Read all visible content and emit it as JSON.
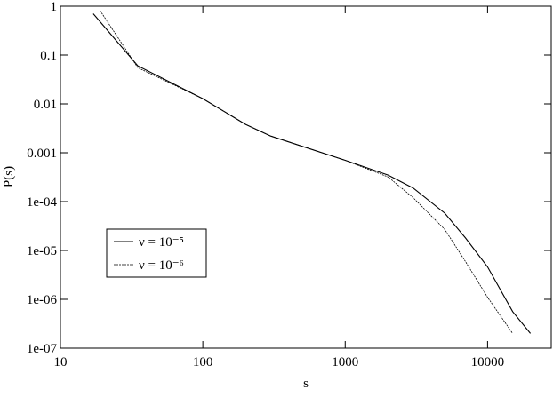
{
  "chart_data": {
    "type": "line",
    "xlabel": "s",
    "ylabel": "P(s)",
    "xscale": "log",
    "yscale": "log",
    "xlim": [
      10,
      28000
    ],
    "ylim": [
      1e-07,
      1
    ],
    "xticks": [
      10,
      100,
      1000,
      10000
    ],
    "yticks": [
      1,
      0.1,
      0.01,
      0.001,
      {
        "value": 0.0001,
        "label": "1e-04"
      },
      {
        "value": 1e-05,
        "label": "1e-05"
      },
      {
        "value": 1e-06,
        "label": "1e-06"
      },
      {
        "value": 1e-07,
        "label": "1e-07"
      }
    ],
    "legend": "lower left",
    "series": [
      {
        "name": "ν = 10⁻⁵",
        "color": "#000000",
        "linestyle": "solid",
        "x": [
          17,
          35,
          100,
          200,
          300,
          500,
          1000,
          2000,
          3000,
          5000,
          7000,
          10000,
          15000,
          20000
        ],
        "values": [
          0.7,
          0.06,
          0.0128,
          0.0038,
          0.0022,
          0.00135,
          0.0007,
          0.00035,
          0.00019,
          5.8e-05,
          1.8e-05,
          4.6e-06,
          5.6e-07,
          2e-07
        ]
      },
      {
        "name": "ν = 10⁻⁶",
        "color": "#000000",
        "linestyle": "dotted",
        "x": [
          19,
          35,
          100,
          200,
          300,
          500,
          1000,
          2000,
          3000,
          5000,
          7000,
          10000,
          15000
        ],
        "values": [
          0.81,
          0.055,
          0.0128,
          0.0038,
          0.0022,
          0.00135,
          0.0007,
          0.00032,
          0.00012,
          2.7e-05,
          5.9e-06,
          1.1e-06,
          2e-07
        ]
      }
    ]
  }
}
